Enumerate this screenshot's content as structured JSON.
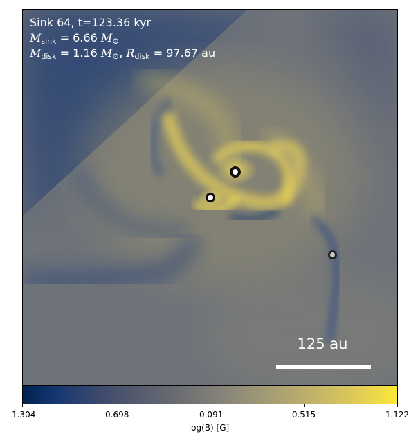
{
  "annotation": {
    "line1": "Sink 64, t=123.36 kyr",
    "m_sink_symbol": "M",
    "m_sink_sub": "sink",
    "m_sink_value": "= 6.66",
    "sun_symbol": "M",
    "sun_sub": "⊙",
    "m_disk_symbol": "M",
    "m_disk_sub": "disk",
    "m_disk_value": "= 1.16",
    "r_disk_symbol": "R",
    "r_disk_sub": "disk",
    "r_disk_value": "= 97.67 au"
  },
  "scale_bar": {
    "label": "125 au"
  },
  "colorbar": {
    "label": "log(B) [G]",
    "ticks": [
      "-1.304",
      "-0.698",
      "-0.091",
      "0.515",
      "1.122"
    ],
    "colors": [
      "#00224e",
      "#707173",
      "#fee838"
    ]
  },
  "sinks": [
    {
      "name": "sink-main",
      "fill": "#ffffff",
      "ring": "#111111"
    },
    {
      "name": "sink-left",
      "fill": "#ffffff",
      "ring": "#111111"
    },
    {
      "name": "sink-right",
      "fill": "#c8c8c8",
      "ring": "#222222"
    }
  ]
}
